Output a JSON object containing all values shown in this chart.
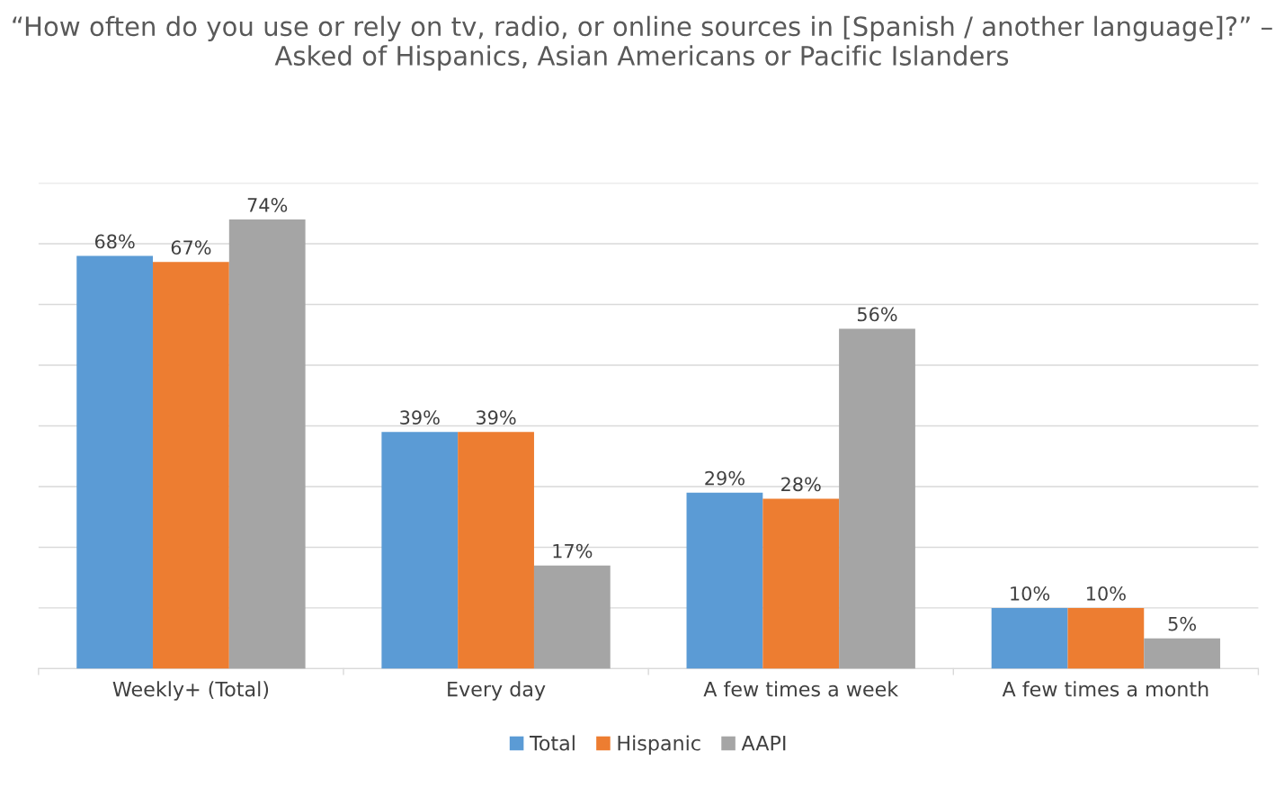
{
  "chart_data": {
    "type": "bar",
    "title": "“How often do you use or rely on tv, radio, or online sources in [Spanish / another language]?” – Asked of Hispanics, Asian Americans or Pacific Islanders",
    "categories": [
      "Weekly+ (Total)",
      "Every day",
      "A few times a week",
      "A few times a month"
    ],
    "series": [
      {
        "name": "Total",
        "color": "#5b9bd5",
        "values": [
          68,
          39,
          29,
          10
        ],
        "value_labels": [
          "68%",
          "39%",
          "29%",
          "10%"
        ]
      },
      {
        "name": "Hispanic",
        "color": "#ed7d31",
        "values": [
          67,
          39,
          28,
          10
        ],
        "value_labels": [
          "67%",
          "39%",
          "28%",
          "10%"
        ]
      },
      {
        "name": "AAPI",
        "color": "#a5a5a5",
        "values": [
          74,
          17,
          56,
          5
        ],
        "value_labels": [
          "74%",
          "17%",
          "56%",
          "5%"
        ]
      }
    ],
    "ylim": [
      0,
      80
    ],
    "yticks": [
      {
        "value": 0,
        "label": null
      },
      {
        "value": 10,
        "label": null
      },
      {
        "value": 20,
        "label": null
      },
      {
        "value": 30,
        "label": null
      },
      {
        "value": 40,
        "label": null
      },
      {
        "value": 50,
        "label": null
      },
      {
        "value": 60,
        "label": null
      },
      {
        "value": 70,
        "label": null
      },
      {
        "value": 80,
        "label": null
      }
    ],
    "tick_labels": "x",
    "grid": "y",
    "legend": "bottom"
  }
}
